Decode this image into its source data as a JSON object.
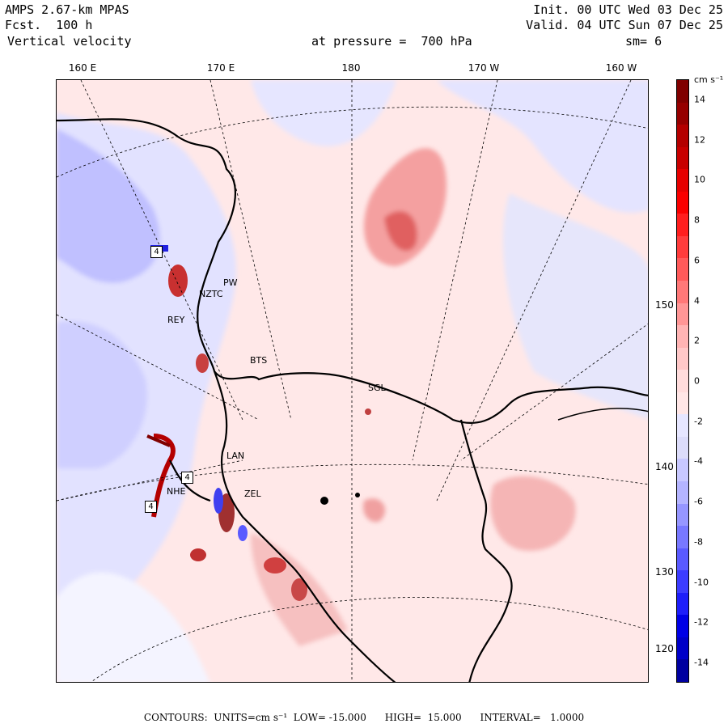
{
  "header": {
    "model": "AMPS 2.67-km MPAS",
    "forecast": "Fcst.  100 h",
    "field": "Vertical velocity",
    "init": "Init. 00 UTC Wed 03 Dec 25",
    "valid": "Valid. 04 UTC Sun 07 Dec 25",
    "level": "at pressure =  700 hPa",
    "smoothing": "sm= 6"
  },
  "map": {
    "lon_labels": [
      "160 E",
      "170 E",
      "180",
      "170 W",
      "160 W"
    ],
    "lat_labels": [
      "150 W",
      "140 W",
      "130 W",
      "120 W"
    ],
    "stations": [
      "PW",
      "NZTC",
      "REY",
      "BTS",
      "SGL",
      "LAN",
      "NHE",
      "ZEL"
    ],
    "box_markers": [
      "4",
      "4",
      "4"
    ]
  },
  "colorbar": {
    "unit": "cm s⁻¹",
    "labels": [
      "14",
      "12",
      "10",
      "8",
      "6",
      "4",
      "2",
      "0",
      "-2",
      "-4",
      "-6",
      "-8",
      "-10",
      "-12",
      "-14"
    ],
    "colors": [
      "#0000a0",
      "#0000c8",
      "#0000e6",
      "#1e1efa",
      "#3c3cff",
      "#5a5aff",
      "#7878ff",
      "#9696ff",
      "#b4b4ff",
      "#c8c8ff",
      "#dcdcfa",
      "#e6e6ff",
      "#ffe6e6",
      "#ffdcdc",
      "#ffc8c8",
      "#ffb4b4",
      "#ff9696",
      "#ff7878",
      "#ff5a5a",
      "#ff3c3c",
      "#ff1e1e",
      "#fa0000",
      "#e60000",
      "#c80000",
      "#b40000",
      "#960000",
      "#800000"
    ]
  },
  "footer": {
    "text": "CONTOURS:  UNITS=cm s⁻¹  LOW= -15.000      HIGH=  15.000      INTERVAL=   1.0000"
  }
}
